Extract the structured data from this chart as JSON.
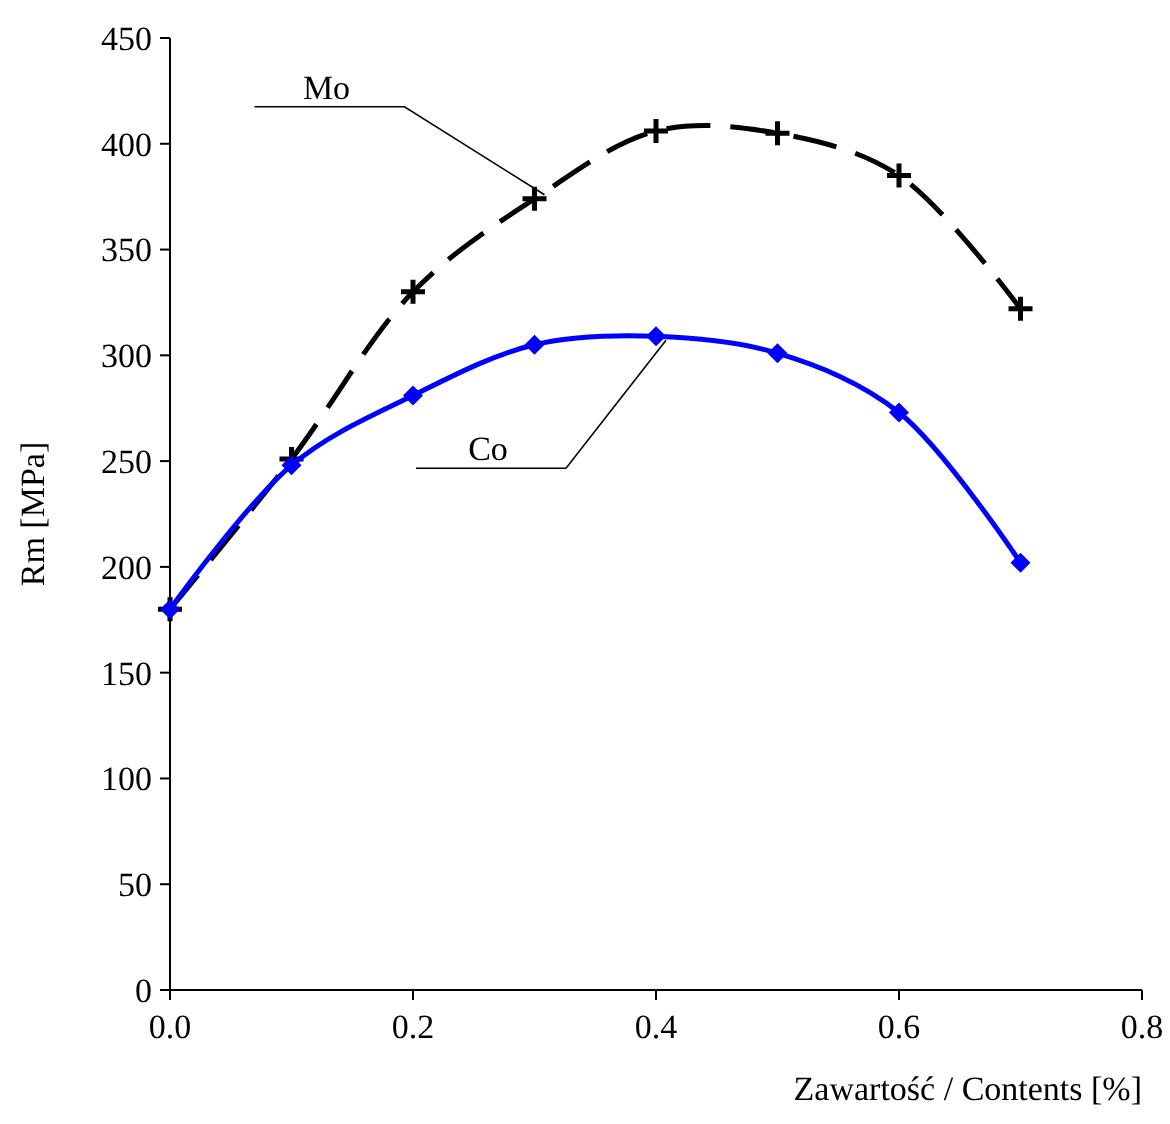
{
  "chart_data": {
    "type": "line",
    "xlabel": "Zawartość / Contents [%]",
    "ylabel": "Rm [MPa]",
    "x": [
      0,
      0.1,
      0.2,
      0.3,
      0.4,
      0.5,
      0.6,
      0.7
    ],
    "series": [
      {
        "name": "Mo",
        "color": "#000000",
        "values": [
          180,
          251,
          330,
          374,
          406,
          405,
          385,
          322
        ],
        "marker": "cross",
        "line_style": "dashed"
      },
      {
        "name": "Co",
        "color": "#0000ff",
        "values": [
          180,
          248,
          281,
          305,
          309,
          301,
          273,
          202
        ],
        "marker": "diamond",
        "line_style": "solid"
      }
    ],
    "xlim": [
      0,
      0.8
    ],
    "xticks": [
      {
        "value": 0,
        "label": "0.0"
      },
      {
        "value": 0.2,
        "label": "0.2"
      },
      {
        "value": 0.4,
        "label": "0.4"
      },
      {
        "value": 0.6,
        "label": "0.6"
      },
      {
        "value": 0.8,
        "label": "0.8"
      }
    ],
    "ylim": [
      0,
      450
    ],
    "yticks": [
      0,
      50,
      100,
      150,
      200,
      250,
      300,
      350,
      400,
      450
    ],
    "grid": false
  }
}
